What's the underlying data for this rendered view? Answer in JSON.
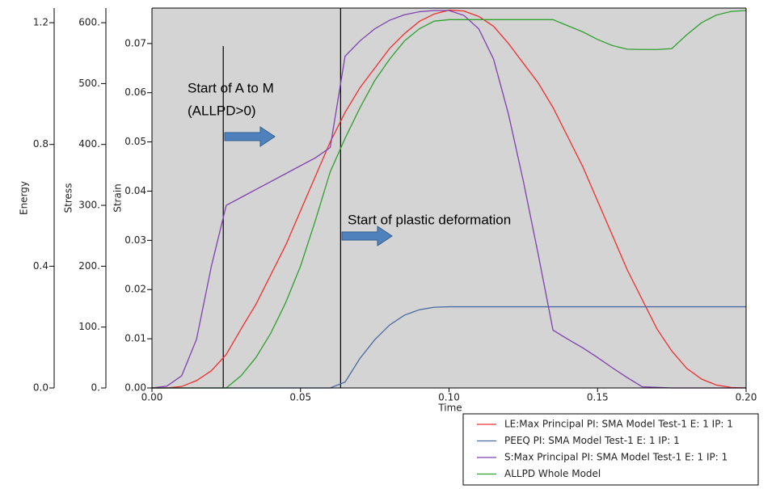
{
  "chart_data": {
    "type": "line",
    "xlabel": "Time",
    "ylabel": "Strain",
    "y2label": "Stress",
    "y3label": "Energy",
    "x": [
      0,
      0.005,
      0.01,
      0.015,
      0.02,
      0.025,
      0.03,
      0.035,
      0.04,
      0.045,
      0.05,
      0.055,
      0.06,
      0.065,
      0.07,
      0.075,
      0.08,
      0.085,
      0.09,
      0.095,
      0.1,
      0.105,
      0.11,
      0.115,
      0.12,
      0.125,
      0.13,
      0.135,
      0.14,
      0.145,
      0.15,
      0.155,
      0.16,
      0.165,
      0.17,
      0.175,
      0.18,
      0.185,
      0.19,
      0.195,
      0.2
    ],
    "xlim": [
      0,
      0.2
    ],
    "xticks": [
      {
        "value": 0,
        "label": "0.00"
      },
      0.05,
      {
        "value": 0.1,
        "label": "0.10"
      },
      0.15,
      {
        "value": 0.2,
        "label": "0.20"
      }
    ],
    "ylim": [
      0,
      0.0772
    ],
    "yticks": [
      {
        "value": 0,
        "label": "0.00"
      },
      0.01,
      0.02,
      0.03,
      0.04,
      0.05,
      0.06,
      0.07
    ],
    "y2lim": [
      0,
      624
    ],
    "y2ticks": [
      {
        "value": 0,
        "label": "0."
      },
      {
        "value": 100,
        "label": "100."
      },
      {
        "value": 200,
        "label": "200."
      },
      {
        "value": 300,
        "label": "300."
      },
      {
        "value": 400,
        "label": "400."
      },
      {
        "value": 500,
        "label": "500."
      },
      {
        "value": 600,
        "label": "600."
      }
    ],
    "y3lim": [
      0,
      1.248
    ],
    "y3ticks": [
      {
        "value": 0,
        "label": "0.0"
      },
      0.4,
      0.8,
      1.2
    ],
    "series": [
      {
        "name": "LE:Max Principal PI: SMA Model Test-1 E: 1 IP: 1",
        "color": "#f03030",
        "axis": "y",
        "values": [
          0,
          0,
          0.0003,
          0.0015,
          0.0035,
          0.0068,
          0.012,
          0.017,
          0.023,
          0.029,
          0.036,
          0.043,
          0.05,
          0.056,
          0.061,
          0.065,
          0.069,
          0.072,
          0.0745,
          0.076,
          0.0768,
          0.0766,
          0.0755,
          0.0735,
          0.07,
          0.066,
          0.062,
          0.057,
          0.051,
          0.045,
          0.038,
          0.031,
          0.024,
          0.018,
          0.012,
          0.0075,
          0.004,
          0.0018,
          0.0006,
          0.0001,
          0
        ]
      },
      {
        "name": "PEEQ PI: SMA Model Test-1 E: 1 IP: 1",
        "color": "#4a6aa0",
        "axis": "y",
        "values": [
          0,
          0,
          0,
          0,
          0,
          0,
          0,
          0,
          0,
          0,
          0,
          0,
          0,
          0.0012,
          0.006,
          0.0098,
          0.0128,
          0.0148,
          0.0159,
          0.0164,
          0.0165,
          0.0165,
          0.0165,
          0.0165,
          0.0165,
          0.0165,
          0.0165,
          0.0165,
          0.0165,
          0.0165,
          0.0165,
          0.0165,
          0.0165,
          0.0165,
          0.0165,
          0.0165,
          0.0165,
          0.0165,
          0.0165,
          0.0165,
          0.0165
        ]
      },
      {
        "name": "S:Max Principal PI: SMA Model Test-1 E: 1 IP: 1",
        "color": "#8040b0",
        "axis": "y2",
        "values": [
          0,
          3,
          20,
          80,
          200,
          300,
          313,
          326,
          339,
          352,
          365,
          378,
          395,
          545,
          570,
          590,
          604,
          613,
          618,
          620,
          620,
          612,
          590,
          540,
          450,
          340,
          220,
          95,
          80,
          66,
          50,
          33,
          17,
          2,
          1,
          0,
          0,
          0,
          0,
          0,
          0
        ]
      },
      {
        "name": "ALLPD Whole Model",
        "color": "#30a030",
        "axis": "y3",
        "values": [
          0,
          0,
          0,
          0,
          0,
          0,
          0.04,
          0.1,
          0.18,
          0.28,
          0.4,
          0.55,
          0.71,
          0.82,
          0.92,
          1.01,
          1.08,
          1.14,
          1.18,
          1.205,
          1.21,
          1.21,
          1.21,
          1.21,
          1.21,
          1.21,
          1.21,
          1.21,
          1.19,
          1.17,
          1.145,
          1.125,
          1.113,
          1.112,
          1.112,
          1.115,
          1.16,
          1.2,
          1.225,
          1.237,
          1.24
        ]
      }
    ],
    "vlines": [
      0.024,
      0.0635
    ],
    "annotations": [
      "Start of A to M",
      "(ALLPD>0)",
      "Start of plastic deformation"
    ],
    "background": "#d4d4d4"
  }
}
